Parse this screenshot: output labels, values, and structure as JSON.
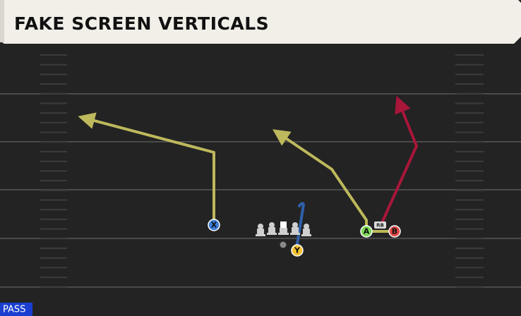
{
  "header": {
    "title": "FAKE SCREEN VERTICALS"
  },
  "players": [
    {
      "label": "X"
    },
    {
      "label": "Y"
    },
    {
      "label": "A"
    },
    {
      "label": "B"
    }
  ],
  "backfield_tag": "RB",
  "play_type": "PASS"
}
